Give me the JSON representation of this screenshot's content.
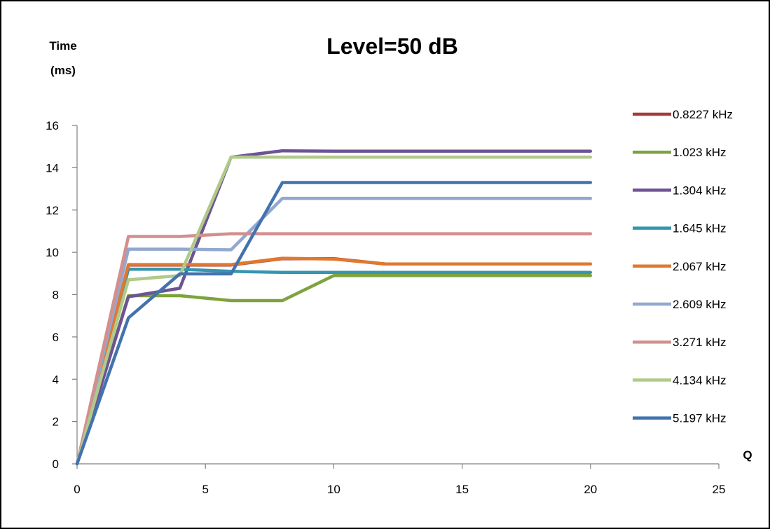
{
  "chart_data": {
    "type": "line",
    "title": "Level=50 dB",
    "ylabel_line1": "Time",
    "ylabel_line2": "(ms)",
    "xlabel": "Q",
    "xlim": [
      0,
      25
    ],
    "ylim": [
      0,
      16
    ],
    "xticks": [
      0,
      5,
      10,
      15,
      20,
      25
    ],
    "yticks": [
      0,
      2,
      4,
      6,
      8,
      10,
      12,
      14,
      16
    ],
    "grid": false,
    "legend_position": "right",
    "series": [
      {
        "name": "0.8227 kHz",
        "color": "#A33B3A",
        "points": [
          [
            0,
            0
          ],
          [
            2,
            9.4
          ],
          [
            4,
            9.4
          ],
          [
            6,
            9.4
          ],
          [
            8,
            9.7
          ],
          [
            10,
            9.7
          ],
          [
            12,
            9.45
          ],
          [
            20,
            9.45
          ]
        ]
      },
      {
        "name": "1.023 kHz",
        "color": "#7EA33E",
        "points": [
          [
            0,
            0
          ],
          [
            2,
            7.95
          ],
          [
            4,
            7.95
          ],
          [
            6,
            7.72
          ],
          [
            8,
            7.72
          ],
          [
            10,
            8.9
          ],
          [
            12,
            8.9
          ],
          [
            20,
            8.9
          ]
        ]
      },
      {
        "name": "1.304 kHz",
        "color": "#6E5394",
        "points": [
          [
            0,
            0
          ],
          [
            2,
            7.9
          ],
          [
            4,
            8.3
          ],
          [
            6,
            14.5
          ],
          [
            8,
            14.8
          ],
          [
            10,
            14.78
          ],
          [
            12,
            14.78
          ],
          [
            20,
            14.78
          ]
        ]
      },
      {
        "name": "1.645 kHz",
        "color": "#3596AD",
        "points": [
          [
            0,
            0
          ],
          [
            2,
            9.2
          ],
          [
            4,
            9.2
          ],
          [
            6,
            9.1
          ],
          [
            8,
            9.05
          ],
          [
            10,
            9.05
          ],
          [
            12,
            9.05
          ],
          [
            20,
            9.05
          ]
        ]
      },
      {
        "name": "2.067 kHz",
        "color": "#E0782F",
        "points": [
          [
            0,
            0
          ],
          [
            2,
            9.42
          ],
          [
            4,
            9.42
          ],
          [
            6,
            9.42
          ],
          [
            8,
            9.72
          ],
          [
            10,
            9.68
          ],
          [
            12,
            9.45
          ],
          [
            20,
            9.45
          ]
        ]
      },
      {
        "name": "2.609 kHz",
        "color": "#92A8CF",
        "points": [
          [
            0,
            0
          ],
          [
            2,
            10.15
          ],
          [
            4,
            10.15
          ],
          [
            6,
            10.12
          ],
          [
            8,
            12.55
          ],
          [
            10,
            12.55
          ],
          [
            12,
            12.55
          ],
          [
            20,
            12.55
          ]
        ]
      },
      {
        "name": "3.271 kHz",
        "color": "#D38F8D",
        "points": [
          [
            0,
            0
          ],
          [
            2,
            10.75
          ],
          [
            4,
            10.75
          ],
          [
            6,
            10.88
          ],
          [
            8,
            10.88
          ],
          [
            10,
            10.88
          ],
          [
            12,
            10.88
          ],
          [
            20,
            10.88
          ]
        ]
      },
      {
        "name": "4.134 kHz",
        "color": "#B0CA8A",
        "points": [
          [
            0,
            0
          ],
          [
            2,
            8.7
          ],
          [
            4,
            8.9
          ],
          [
            6,
            14.5
          ],
          [
            8,
            14.5
          ],
          [
            10,
            14.5
          ],
          [
            12,
            14.5
          ],
          [
            20,
            14.5
          ]
        ]
      },
      {
        "name": "5.197 kHz",
        "color": "#4373AE",
        "points": [
          [
            0,
            0
          ],
          [
            2,
            6.9
          ],
          [
            4,
            8.98
          ],
          [
            6,
            8.98
          ],
          [
            8,
            13.3
          ],
          [
            10,
            13.3
          ],
          [
            12,
            13.3
          ],
          [
            20,
            13.3
          ]
        ]
      }
    ]
  }
}
